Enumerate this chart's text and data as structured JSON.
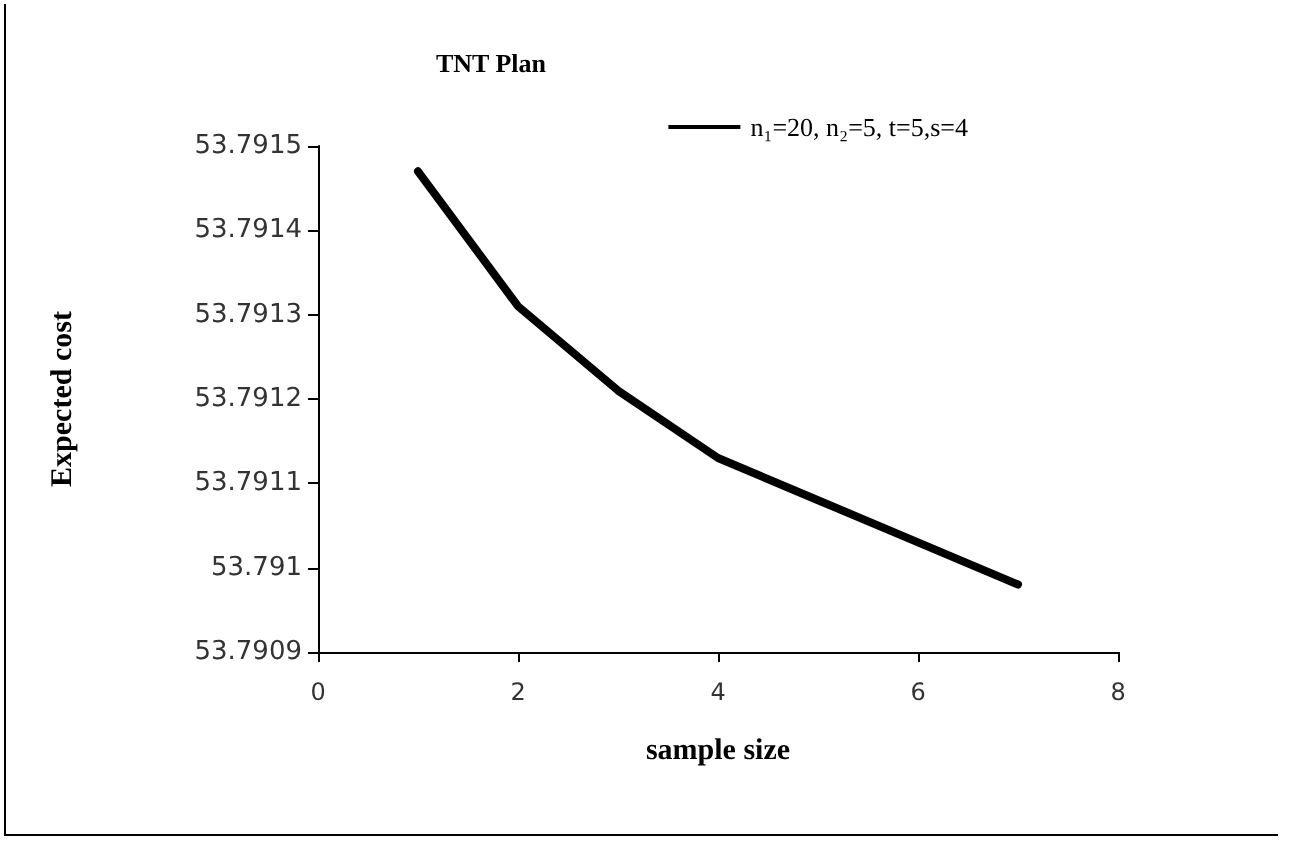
{
  "chart_data": {
    "type": "line",
    "title": "TNT Plan",
    "xlabel": "sample size",
    "ylabel": "Expected cost",
    "x": [
      1,
      2,
      3,
      4,
      5,
      6,
      7
    ],
    "series": [
      {
        "name": "n₁=20, n₂=5, t=5,s=4",
        "color": "#000000",
        "values": [
          53.79147,
          53.79131,
          53.79121,
          53.79113,
          53.79108,
          53.79103,
          53.79098
        ]
      }
    ],
    "xlim": [
      0,
      8
    ],
    "xticks": [
      0,
      2,
      4,
      6,
      8
    ],
    "ylim": [
      53.7909,
      53.7915
    ],
    "yticks": [
      53.7909,
      53.791,
      53.7911,
      53.7912,
      53.7913,
      53.7914,
      53.7915
    ],
    "grid": false,
    "legend": "top right",
    "marker": "none",
    "line_style": "solid"
  }
}
